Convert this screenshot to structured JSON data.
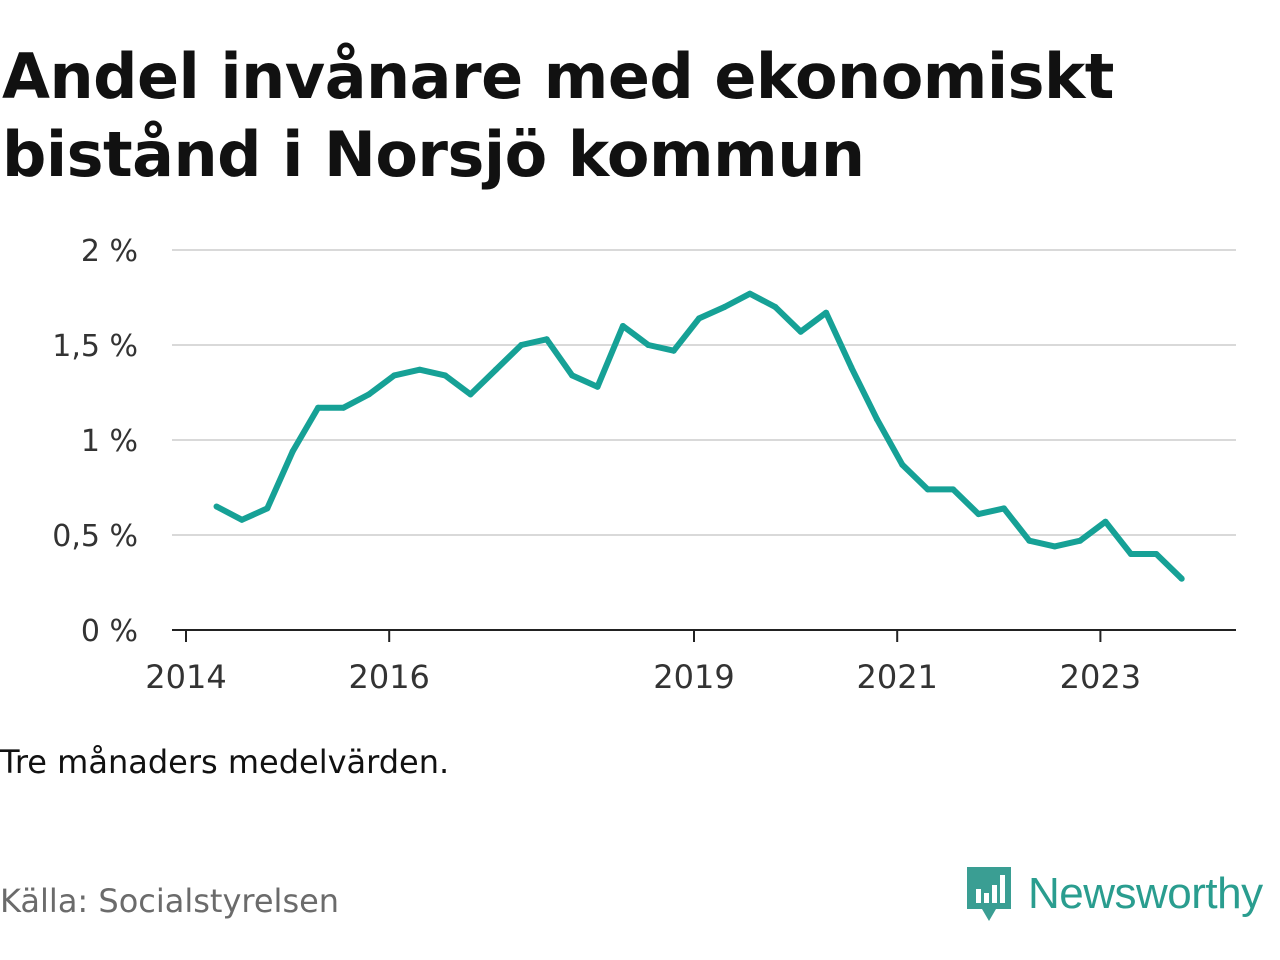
{
  "title": "Andel invånare med ekonomiskt bistånd i Norsjö kommun",
  "note": "Tre månaders medelvärden.",
  "source": "Källa: Socialstyrelsen",
  "brand": {
    "name": "Newsworthy",
    "icon": "newsworthy-logo-icon",
    "color": "#3a9e93"
  },
  "colors": {
    "line": "#16a196",
    "grid": "#d9d9d9",
    "axis": "#222222"
  },
  "chart_data": {
    "type": "line",
    "title": "Andel invånare med ekonomiskt bistånd i Norsjö kommun",
    "xlabel": "",
    "ylabel": "",
    "ylim": [
      0,
      2
    ],
    "xlim": [
      2014.0,
      2024.5
    ],
    "grid": true,
    "y_ticks": [
      0,
      0.5,
      1,
      1.5,
      2
    ],
    "y_tick_labels": [
      "0 %",
      "0,5 %",
      "1 %",
      "1,5 %",
      "2 %"
    ],
    "x_ticks": [
      2014,
      2016,
      2019,
      2021,
      2023
    ],
    "x_tick_labels": [
      "2014",
      "2016",
      "2019",
      "2021",
      "2023"
    ],
    "x": [
      2014.3,
      2014.55,
      2014.8,
      2015.05,
      2015.3,
      2015.55,
      2015.8,
      2016.05,
      2016.3,
      2016.55,
      2016.8,
      2017.05,
      2017.3,
      2017.55,
      2017.8,
      2018.05,
      2018.3,
      2018.55,
      2018.8,
      2019.05,
      2019.3,
      2019.55,
      2019.8,
      2020.05,
      2020.3,
      2020.55,
      2020.8,
      2021.05,
      2021.3,
      2021.55,
      2021.8,
      2022.05,
      2022.3,
      2022.55,
      2022.8,
      2023.05,
      2023.3,
      2023.55,
      2023.8
    ],
    "series": [
      {
        "values": [
          0.65,
          0.58,
          0.64,
          0.94,
          1.17,
          1.17,
          1.24,
          1.34,
          1.37,
          1.34,
          1.24,
          1.37,
          1.5,
          1.53,
          1.34,
          1.28,
          1.6,
          1.5,
          1.47,
          1.64,
          1.7,
          1.77,
          1.7,
          1.57,
          1.67,
          1.38,
          1.11,
          0.87,
          0.74,
          0.74,
          0.61,
          0.64,
          0.47,
          0.44,
          0.47,
          0.57,
          0.4,
          0.4,
          0.27
        ]
      }
    ]
  }
}
